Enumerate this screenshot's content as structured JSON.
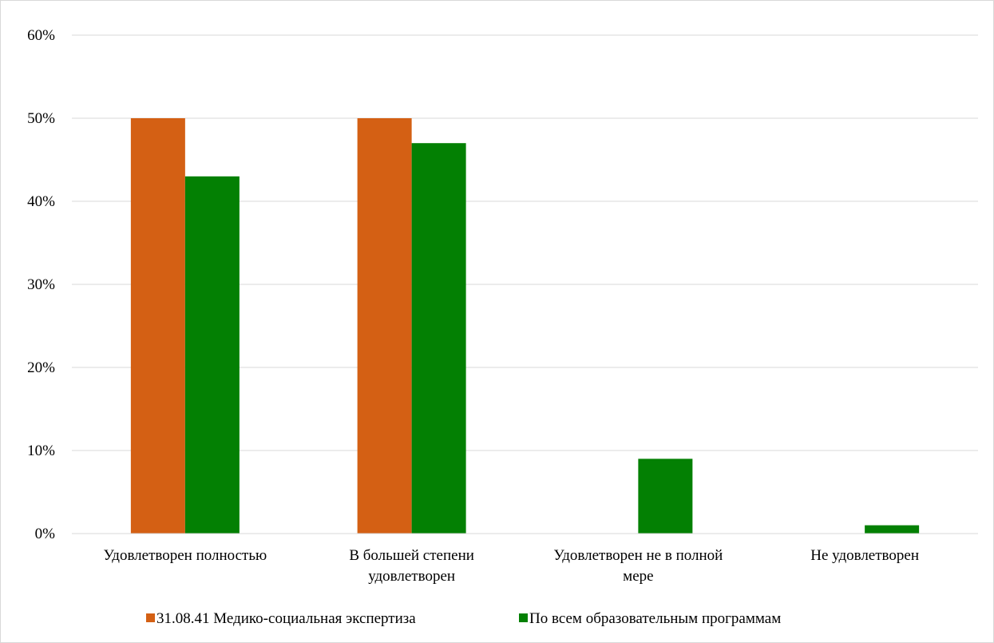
{
  "chart_data": {
    "type": "bar",
    "title": "",
    "xlabel": "",
    "ylabel": "",
    "categories": [
      [
        "Удовлетворен полностью"
      ],
      [
        "В большей степени",
        "удовлетворен"
      ],
      [
        "Удовлетворен не в полной",
        "мере"
      ],
      [
        "Не удовлетворен"
      ]
    ],
    "series": [
      {
        "name": "31.08.41 Медико-социальная экспертиза",
        "color": "#d46014",
        "values": [
          50,
          50,
          0,
          0
        ]
      },
      {
        "name": "По всем образовательным программам",
        "color": "#038003",
        "values": [
          43,
          47,
          9,
          1
        ]
      }
    ],
    "ylim": [
      0,
      60
    ],
    "yticks": [
      "0%",
      "10%",
      "20%",
      "30%",
      "40%",
      "50%",
      "60%"
    ],
    "ytick_values": [
      0,
      10,
      20,
      30,
      40,
      50,
      60
    ],
    "grid": true,
    "legend_position": "bottom"
  }
}
